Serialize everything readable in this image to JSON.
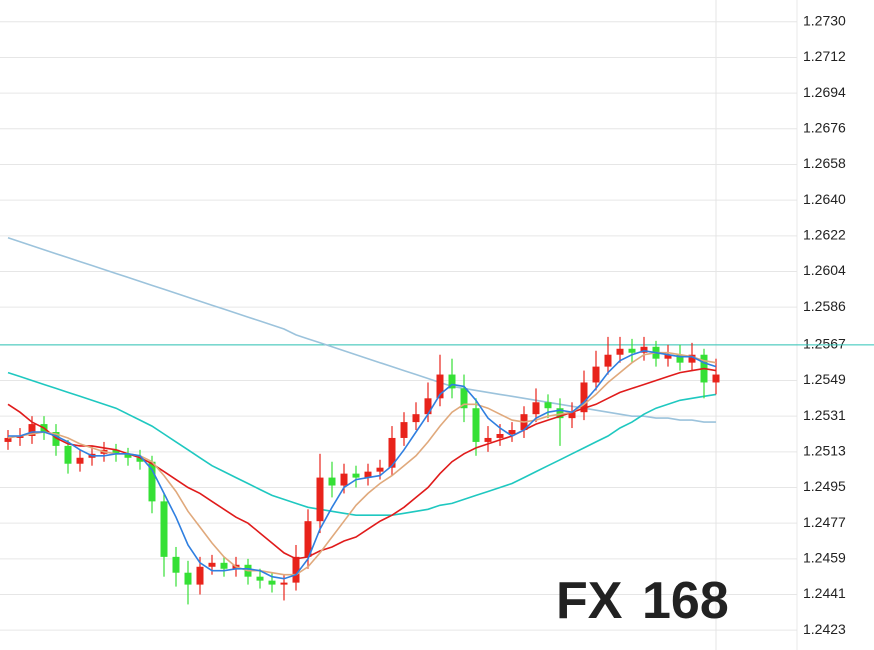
{
  "chart_data": {
    "type": "candlestick",
    "ylim": [
      1.2413,
      1.2741
    ],
    "yticks": [
      {
        "value": 1.273,
        "label": "1.2730"
      },
      1.2712,
      1.2694,
      1.2676,
      1.2658,
      {
        "value": 1.264,
        "label": "1.2640"
      },
      1.2622,
      1.2604,
      1.2586,
      1.2567,
      1.2549,
      1.2531,
      1.2513,
      1.2495,
      1.2477,
      1.2459,
      1.2441,
      1.2423
    ],
    "grid": true,
    "price_line": 1.2567,
    "price_line_color": "#2ec4b6",
    "up_color": "#e8231b",
    "down_color": "#35e035",
    "watermark": {
      "prefix": "FX",
      "suffix": "168"
    },
    "open": [
      1.2518,
      1.252,
      1.2521,
      1.2527,
      1.2523,
      1.2516,
      1.2507,
      1.251,
      1.2512,
      1.2514,
      1.2512,
      1.251,
      1.2508,
      1.2488,
      1.246,
      1.2452,
      1.2446,
      1.2455,
      1.2457,
      1.2454,
      1.2456,
      1.245,
      1.2448,
      1.2446,
      1.2447,
      1.246,
      1.2478,
      1.25,
      1.2496,
      1.2502,
      1.25,
      1.2503,
      1.2505,
      1.252,
      1.2528,
      1.2532,
      1.254,
      1.2552,
      1.2545,
      1.2535,
      1.2518,
      1.252,
      1.2522,
      1.2524,
      1.2532,
      1.2538,
      1.2535,
      1.253,
      1.2533,
      1.2548,
      1.2556,
      1.2562,
      1.2565,
      1.2563,
      1.2566,
      1.256,
      1.2562,
      1.2558,
      1.2562,
      1.2548
    ],
    "high": [
      1.2524,
      1.2525,
      1.2531,
      1.2531,
      1.2527,
      1.2519,
      1.2514,
      1.2516,
      1.2518,
      1.2517,
      1.2515,
      1.2514,
      1.2511,
      1.2492,
      1.2465,
      1.2458,
      1.246,
      1.2461,
      1.246,
      1.246,
      1.2459,
      1.2454,
      1.2452,
      1.2451,
      1.2466,
      1.2484,
      1.2512,
      1.2508,
      1.2507,
      1.2506,
      1.2507,
      1.2509,
      1.2526,
      1.2533,
      1.2538,
      1.2548,
      1.2562,
      1.256,
      1.2552,
      1.254,
      1.2526,
      1.2527,
      1.2528,
      1.2536,
      1.2545,
      1.2542,
      1.254,
      1.2538,
      1.2554,
      1.2564,
      1.2571,
      1.2571,
      1.257,
      1.2571,
      1.2569,
      1.2567,
      1.2567,
      1.2568,
      1.2565,
      1.256
    ],
    "low": [
      1.2514,
      1.2516,
      1.2517,
      1.2519,
      1.2511,
      1.2502,
      1.2503,
      1.2506,
      1.2508,
      1.2508,
      1.2506,
      1.2504,
      1.2482,
      1.245,
      1.2445,
      1.2436,
      1.2441,
      1.2451,
      1.245,
      1.245,
      1.2446,
      1.2444,
      1.2442,
      1.2438,
      1.2443,
      1.2454,
      1.2472,
      1.249,
      1.2492,
      1.2495,
      1.2496,
      1.2499,
      1.2501,
      1.2516,
      1.2524,
      1.2528,
      1.2536,
      1.254,
      1.2528,
      1.2511,
      1.2513,
      1.2516,
      1.2518,
      1.252,
      1.2528,
      1.253,
      1.2516,
      1.2525,
      1.2529,
      1.2544,
      1.2552,
      1.2558,
      1.2558,
      1.2559,
      1.2556,
      1.2556,
      1.2554,
      1.2554,
      1.254,
      1.2542
    ],
    "close": [
      1.252,
      1.2521,
      1.2527,
      1.2523,
      1.2516,
      1.2507,
      1.251,
      1.2512,
      1.2514,
      1.2512,
      1.251,
      1.2508,
      1.2488,
      1.246,
      1.2452,
      1.2446,
      1.2455,
      1.2457,
      1.2454,
      1.2456,
      1.245,
      1.2448,
      1.2446,
      1.2447,
      1.246,
      1.2478,
      1.25,
      1.2496,
      1.2502,
      1.25,
      1.2503,
      1.2505,
      1.252,
      1.2528,
      1.2532,
      1.254,
      1.2552,
      1.2545,
      1.2535,
      1.2518,
      1.252,
      1.2522,
      1.2524,
      1.2532,
      1.2538,
      1.2535,
      1.253,
      1.2533,
      1.2548,
      1.2556,
      1.2562,
      1.2565,
      1.2563,
      1.2566,
      1.256,
      1.2562,
      1.2558,
      1.2562,
      1.2548,
      1.2552
    ],
    "series": [
      {
        "color": "#9cc3dc",
        "values": [
          1.2621,
          1.2619,
          1.2617,
          1.2615,
          1.2613,
          1.2611,
          1.2609,
          1.2607,
          1.2605,
          1.2603,
          1.2601,
          1.2599,
          1.2597,
          1.2595,
          1.2593,
          1.2591,
          1.2589,
          1.2587,
          1.2585,
          1.2583,
          1.2581,
          1.2579,
          1.2577,
          1.2575,
          1.2572,
          1.257,
          1.2568,
          1.2566,
          1.2564,
          1.2562,
          1.256,
          1.2558,
          1.2556,
          1.2554,
          1.2552,
          1.255,
          1.2548,
          1.2546,
          1.2545,
          1.2544,
          1.2543,
          1.2542,
          1.2541,
          1.254,
          1.2539,
          1.2538,
          1.2537,
          1.2536,
          1.2535,
          1.2534,
          1.2533,
          1.2532,
          1.2531,
          1.2531,
          1.253,
          1.253,
          1.2529,
          1.2529,
          1.2528,
          1.2528
        ]
      },
      {
        "color": "#1fc8c0",
        "values": [
          1.2553,
          1.2551,
          1.2549,
          1.2547,
          1.2545,
          1.2543,
          1.2541,
          1.2539,
          1.2537,
          1.2535,
          1.2532,
          1.2529,
          1.2526,
          1.2522,
          1.2518,
          1.2514,
          1.251,
          1.2506,
          1.2503,
          1.25,
          1.2497,
          1.2494,
          1.2491,
          1.2489,
          1.2487,
          1.2485,
          1.2484,
          1.2483,
          1.2482,
          1.2481,
          1.2481,
          1.2481,
          1.2481,
          1.2482,
          1.2483,
          1.2484,
          1.2486,
          1.2487,
          1.2489,
          1.2491,
          1.2493,
          1.2495,
          1.2497,
          1.25,
          1.2503,
          1.2506,
          1.2509,
          1.2512,
          1.2515,
          1.2518,
          1.2521,
          1.2525,
          1.2528,
          1.2532,
          1.2535,
          1.2537,
          1.2539,
          1.254,
          1.2541,
          1.2542
        ]
      },
      {
        "color": "#e01b1b",
        "values": [
          1.2537,
          1.2533,
          1.2528,
          1.2525,
          1.252,
          1.2517,
          1.2516,
          1.2516,
          1.2515,
          1.2514,
          1.2512,
          1.251,
          1.2507,
          1.2503,
          1.2499,
          1.2495,
          1.2492,
          1.2488,
          1.2484,
          1.248,
          1.2477,
          1.2472,
          1.2467,
          1.2462,
          1.2459,
          1.246,
          1.2463,
          1.2465,
          1.2468,
          1.247,
          1.2474,
          1.2478,
          1.2481,
          1.2485,
          1.249,
          1.2495,
          1.2502,
          1.2508,
          1.2512,
          1.2515,
          1.2517,
          1.2519,
          1.2521,
          1.2524,
          1.2527,
          1.2529,
          1.2531,
          1.2533,
          1.2535,
          1.2537,
          1.254,
          1.2543,
          1.2545,
          1.2547,
          1.2549,
          1.2551,
          1.2553,
          1.2554,
          1.2555,
          1.2554
        ]
      },
      {
        "color": "#e0a97c",
        "values": [
          1.252,
          1.2521,
          1.2522,
          1.2523,
          1.2522,
          1.252,
          1.2517,
          1.2515,
          1.2513,
          1.2512,
          1.2512,
          1.2511,
          1.2508,
          1.2501,
          1.2493,
          1.2483,
          1.2475,
          1.2467,
          1.246,
          1.2455,
          1.2453,
          1.2453,
          1.2452,
          1.2451,
          1.2451,
          1.2455,
          1.2462,
          1.247,
          1.2478,
          1.2486,
          1.2492,
          1.2497,
          1.2501,
          1.2506,
          1.2511,
          1.2518,
          1.2526,
          1.2533,
          1.2537,
          1.2537,
          1.2535,
          1.2532,
          1.2529,
          1.2528,
          1.2529,
          1.2531,
          1.2532,
          1.2533,
          1.2537,
          1.2542,
          1.2548,
          1.2553,
          1.2558,
          1.2562,
          1.2563,
          1.2563,
          1.2562,
          1.2561,
          1.2559,
          1.2558
        ]
      },
      {
        "color": "#2f7fe0",
        "values": [
          1.2521,
          1.2521,
          1.2523,
          1.2523,
          1.2521,
          1.2518,
          1.2514,
          1.2511,
          1.2511,
          1.2512,
          1.2512,
          1.2511,
          1.2504,
          1.2492,
          1.248,
          1.2466,
          1.2457,
          1.2453,
          1.2453,
          1.2454,
          1.2454,
          1.2453,
          1.245,
          1.2449,
          1.2451,
          1.2459,
          1.2474,
          1.2485,
          1.2495,
          1.2499,
          1.25,
          1.2501,
          1.2506,
          1.2514,
          1.2523,
          1.2532,
          1.2542,
          1.2547,
          1.2546,
          1.2539,
          1.253,
          1.2525,
          1.2521,
          1.2524,
          1.253,
          1.2533,
          1.2534,
          1.2533,
          1.2538,
          1.2545,
          1.2553,
          1.2559,
          1.2562,
          1.2564,
          1.2563,
          1.2562,
          1.2561,
          1.2561,
          1.2558,
          1.2556
        ]
      }
    ]
  }
}
